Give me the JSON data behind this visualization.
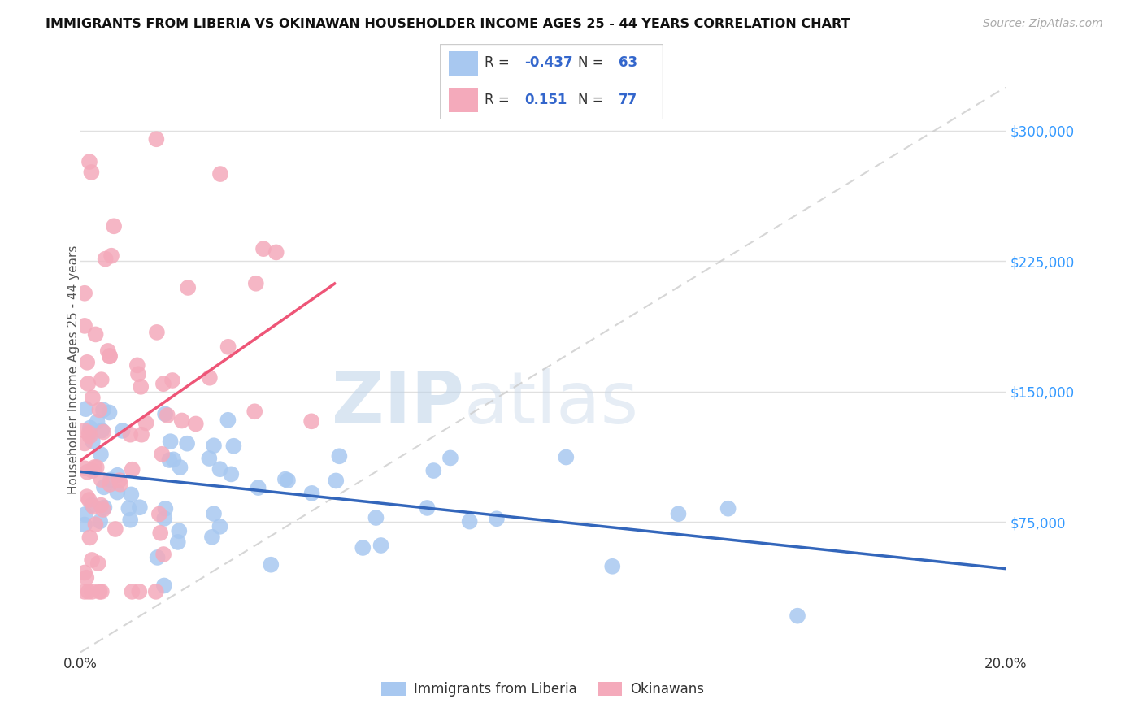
{
  "title": "IMMIGRANTS FROM LIBERIA VS OKINAWAN HOUSEHOLDER INCOME AGES 25 - 44 YEARS CORRELATION CHART",
  "source": "Source: ZipAtlas.com",
  "ylabel": "Householder Income Ages 25 - 44 years",
  "xlim": [
    0.0,
    0.2
  ],
  "ylim": [
    0,
    325000
  ],
  "yticks": [
    75000,
    150000,
    225000,
    300000
  ],
  "ytick_labels": [
    "$75,000",
    "$150,000",
    "$225,000",
    "$300,000"
  ],
  "xticks": [
    0.0,
    0.05,
    0.1,
    0.15,
    0.2
  ],
  "xtick_labels": [
    "0.0%",
    "",
    "",
    "",
    "20.0%"
  ],
  "blue_color": "#A8C8F0",
  "pink_color": "#F4AABB",
  "blue_line_color": "#3366BB",
  "pink_line_color": "#EE5577",
  "blue_seed": 101,
  "pink_seed": 202,
  "n_blue": 63,
  "n_pink": 77,
  "background_color": "#FFFFFF",
  "grid_color": "#E0E0E0",
  "watermark_zip_color": "#C8DAEC",
  "watermark_atlas_color": "#C8D8E8"
}
